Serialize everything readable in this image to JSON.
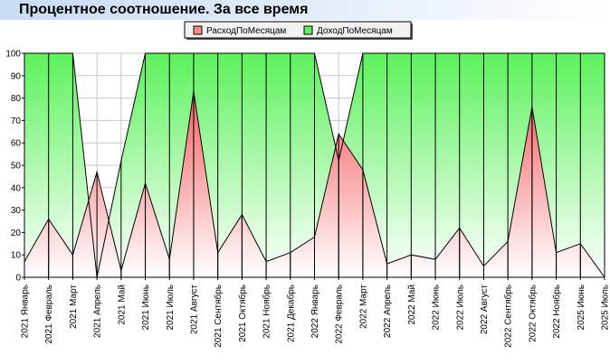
{
  "chart_data": {
    "type": "area",
    "title": "Процентное соотношение. За все время",
    "legend_position": "top-center",
    "grid": true,
    "ylim": [
      0,
      100
    ],
    "yticks": [
      0,
      10,
      20,
      30,
      40,
      50,
      60,
      70,
      80,
      90,
      100
    ],
    "categories": [
      "2021 Январь",
      "2021 Февраль",
      "2021 Март",
      "2021 Апрель",
      "2021 Май",
      "2021 Июнь",
      "2021 Июль",
      "2021 Август",
      "2021 Сентябрь",
      "2021 Октябрь",
      "2021 Ноябрь",
      "2021 Декабрь",
      "2022 Январь",
      "2022 Февраль",
      "2022 Март",
      "2022 Апрель",
      "2022 Май",
      "2022 Июнь",
      "2022 Июль",
      "2022 Август",
      "2022 Сентябрь",
      "2022 Октябрь",
      "2022 Ноябрь",
      "2025 Июнь",
      "2025 Июль"
    ],
    "series": [
      {
        "name": "РасходПоМесяцам",
        "color": "#ff7070",
        "values": [
          7,
          26,
          10,
          47,
          3,
          42,
          8,
          83,
          11,
          28,
          7,
          11,
          18,
          64,
          48,
          6,
          10,
          8,
          22,
          5,
          16,
          76,
          11,
          15,
          0
        ]
      },
      {
        "name": "ДоходПоМесяцам",
        "color": "#4ee84e",
        "values": [
          100,
          100,
          100,
          0,
          52,
          100,
          100,
          100,
          100,
          100,
          100,
          100,
          100,
          52,
          100,
          100,
          100,
          100,
          100,
          100,
          100,
          100,
          100,
          100,
          100
        ]
      }
    ]
  }
}
